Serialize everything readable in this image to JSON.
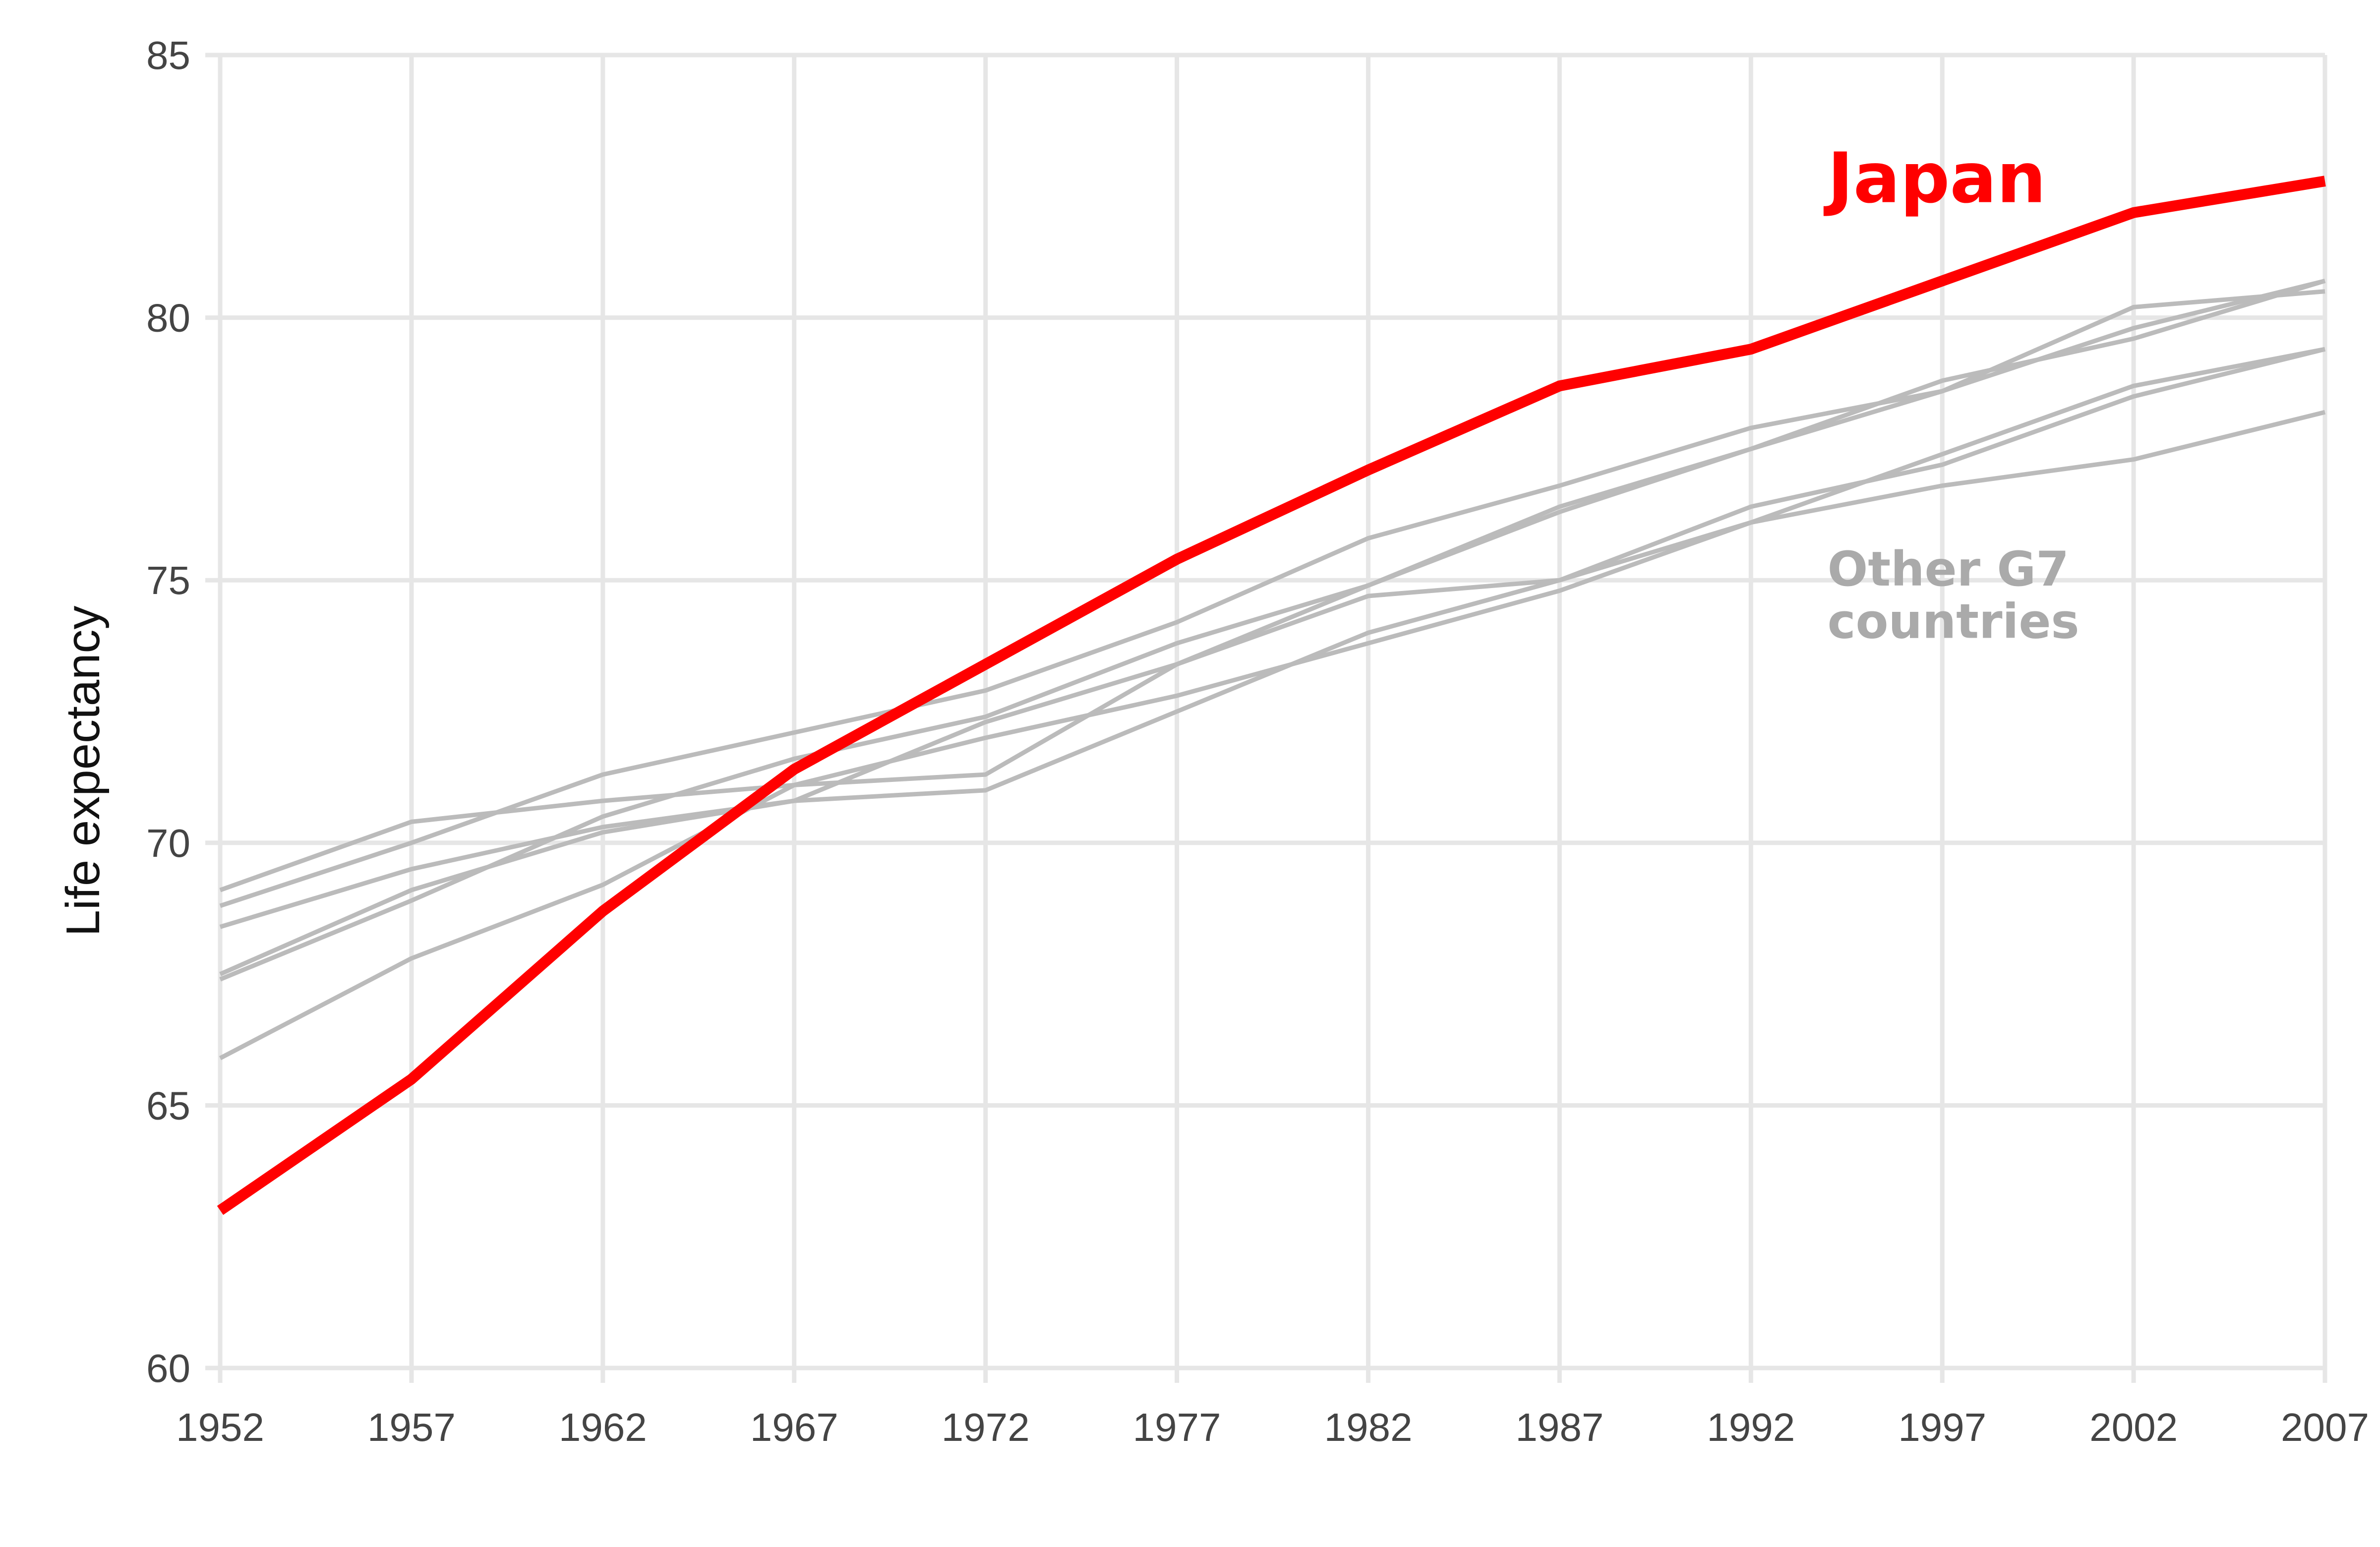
{
  "chart_data": {
    "type": "line",
    "title": "",
    "xlabel": "",
    "ylabel": "Life expectancy",
    "xlim": [
      1952,
      2007
    ],
    "ylim": [
      60,
      85
    ],
    "x": [
      1952,
      1957,
      1962,
      1967,
      1972,
      1977,
      1982,
      1987,
      1992,
      1997,
      2002,
      2007
    ],
    "xticks": [
      "1952",
      "1957",
      "1962",
      "1967",
      "1972",
      "1977",
      "1982",
      "1987",
      "1992",
      "1997",
      "2002",
      "2007"
    ],
    "yticks": [
      "60",
      "65",
      "70",
      "75",
      "80",
      "85"
    ],
    "grid": true,
    "legend": "none",
    "colors": {
      "highlight": "#ff0000",
      "others": "#bbbbbb",
      "grid": "#e6e6e6"
    },
    "series": [
      {
        "values": [
          63.0,
          65.5,
          68.7,
          71.4,
          73.4,
          75.4,
          77.1,
          78.7,
          79.4,
          80.7,
          82.0,
          82.6
        ],
        "highlight": true
      },
      {
        "values": [
          68.8,
          70.0,
          71.3,
          72.1,
          72.9,
          74.2,
          75.8,
          76.8,
          77.9,
          78.6,
          79.8,
          80.7
        ]
      },
      {
        "values": [
          67.4,
          68.9,
          70.5,
          71.6,
          72.4,
          73.8,
          74.9,
          76.4,
          77.5,
          78.8,
          79.6,
          80.7
        ]
      },
      {
        "values": [
          69.1,
          70.4,
          70.8,
          71.1,
          71.3,
          73.4,
          74.7,
          75.0,
          76.4,
          77.2,
          78.5,
          79.4
        ]
      },
      {
        "values": [
          67.5,
          69.1,
          70.2,
          70.8,
          71.0,
          72.5,
          74.0,
          75.0,
          76.1,
          77.4,
          78.7,
          79.4
        ]
      },
      {
        "values": [
          68.4,
          69.5,
          70.3,
          70.8,
          72.3,
          73.4,
          74.9,
          76.3,
          77.5,
          78.6,
          80.2,
          80.5
        ]
      },
      {
        "values": [
          65.9,
          67.8,
          69.2,
          71.1,
          72.0,
          72.8,
          73.8,
          74.8,
          76.1,
          76.8,
          77.3,
          78.2
        ]
      }
    ],
    "annotations": [
      {
        "text": "Japan",
        "x": 1994,
        "y": 82.2,
        "color": "#ff0000"
      },
      {
        "text": "Other G7",
        "x": 1994,
        "y": 74.9,
        "color": "#aaaaaa"
      },
      {
        "text": "countries",
        "x": 1994,
        "y": 73.9,
        "color": "#aaaaaa"
      }
    ]
  }
}
